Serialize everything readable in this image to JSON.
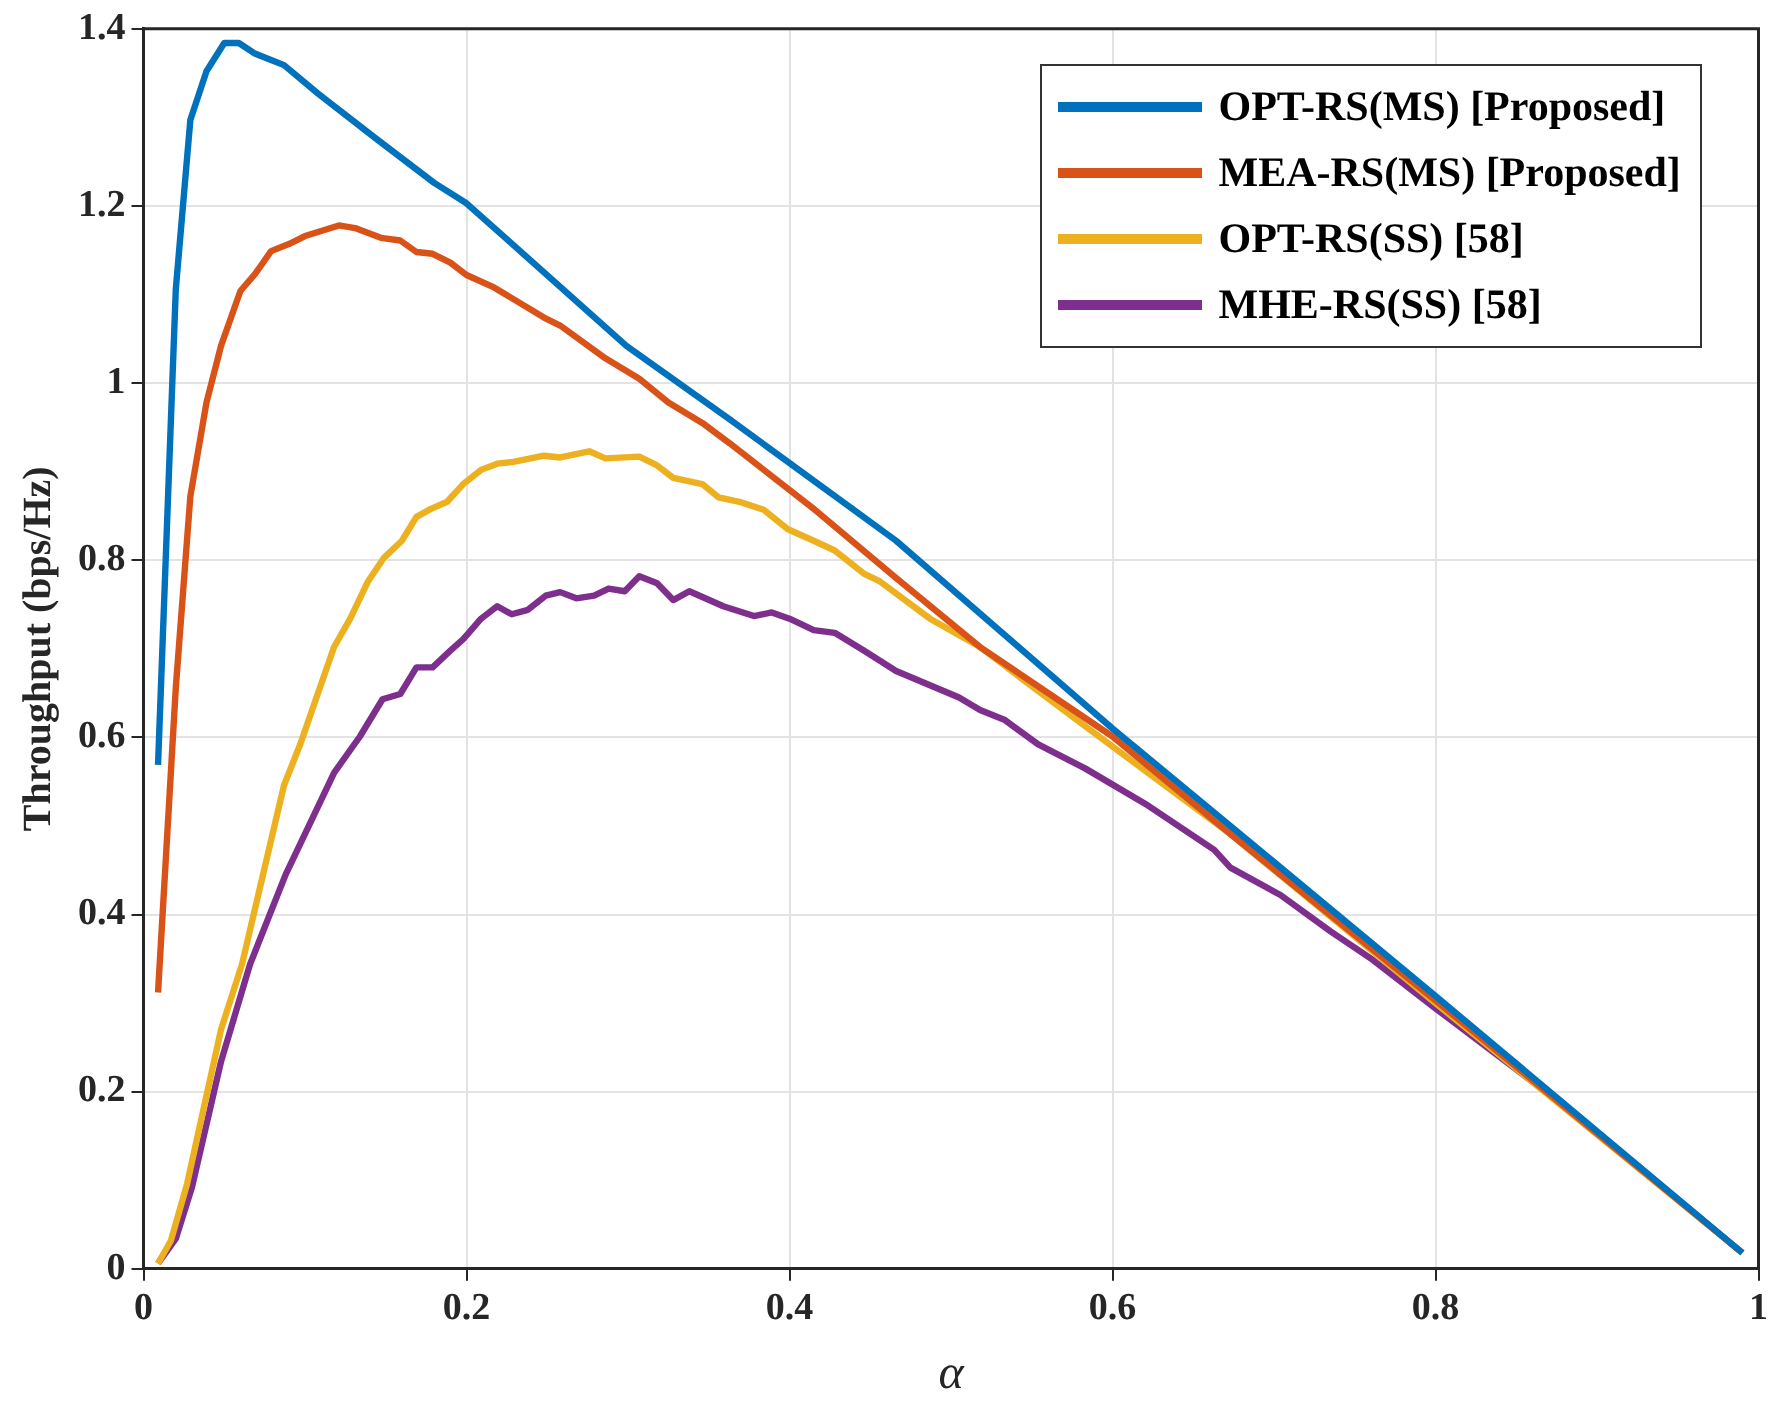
{
  "chart_data": {
    "type": "line",
    "xlabel": "α",
    "ylabel": "Throughput (bps/Hz)",
    "xlim": [
      0,
      1
    ],
    "xticks": [
      0,
      0.2,
      0.4,
      0.6,
      0.8,
      1
    ],
    "ylim": [
      0,
      1.4
    ],
    "yticks": [
      0,
      0.2,
      0.4,
      0.6,
      0.8,
      1,
      1.2,
      1.4
    ],
    "grid": true,
    "legend": "top right",
    "marker": "none",
    "line_style": "solid",
    "series": [
      {
        "name": "OPT-RS(MS) [Proposed]",
        "color": "#0072bd",
        "x": [
          0.009,
          0.02,
          0.029,
          0.039,
          0.05,
          0.059,
          0.069,
          0.087,
          0.108,
          0.144,
          0.18,
          0.2,
          0.248,
          0.299,
          0.363,
          0.466,
          0.6,
          0.673,
          0.8,
          0.99
        ],
        "values": [
          0.569,
          1.106,
          1.297,
          1.352,
          1.384,
          1.384,
          1.372,
          1.359,
          1.327,
          1.276,
          1.226,
          1.203,
          1.125,
          1.042,
          0.959,
          0.822,
          0.61,
          0.5,
          0.308,
          0.018
        ]
      },
      {
        "name": "MEA-RS(MS) [Proposed]",
        "color": "#d95319",
        "x": [
          0.009,
          0.02,
          0.029,
          0.039,
          0.048,
          0.06,
          0.069,
          0.079,
          0.09,
          0.1,
          0.121,
          0.131,
          0.147,
          0.159,
          0.169,
          0.179,
          0.19,
          0.2,
          0.217,
          0.248,
          0.258,
          0.286,
          0.307,
          0.325,
          0.346,
          0.363,
          0.415,
          0.466,
          0.518,
          0.6,
          0.673,
          0.8,
          0.99
        ],
        "values": [
          0.312,
          0.656,
          0.872,
          0.978,
          1.042,
          1.104,
          1.123,
          1.149,
          1.157,
          1.166,
          1.178,
          1.175,
          1.164,
          1.161,
          1.148,
          1.146,
          1.136,
          1.122,
          1.108,
          1.074,
          1.065,
          1.028,
          1.005,
          0.978,
          0.955,
          0.932,
          0.858,
          0.78,
          0.702,
          0.601,
          0.491,
          0.303,
          0.018
        ]
      },
      {
        "name": "OPT-RS(SS) [58]",
        "color": "#edb120",
        "x": [
          0.009,
          0.017,
          0.027,
          0.048,
          0.061,
          0.087,
          0.097,
          0.118,
          0.128,
          0.139,
          0.149,
          0.16,
          0.169,
          0.178,
          0.188,
          0.198,
          0.209,
          0.219,
          0.229,
          0.248,
          0.258,
          0.276,
          0.286,
          0.307,
          0.318,
          0.328,
          0.346,
          0.356,
          0.369,
          0.384,
          0.399,
          0.415,
          0.428,
          0.446,
          0.456,
          0.487,
          0.518,
          0.544,
          0.585,
          0.673,
          0.798,
          0.99
        ],
        "values": [
          0.006,
          0.032,
          0.096,
          0.27,
          0.344,
          0.546,
          0.592,
          0.702,
          0.734,
          0.776,
          0.803,
          0.822,
          0.849,
          0.858,
          0.866,
          0.886,
          0.902,
          0.909,
          0.911,
          0.918,
          0.916,
          0.923,
          0.915,
          0.917,
          0.907,
          0.893,
          0.886,
          0.871,
          0.866,
          0.857,
          0.835,
          0.822,
          0.811,
          0.785,
          0.776,
          0.734,
          0.702,
          0.666,
          0.61,
          0.491,
          0.303,
          0.018
        ]
      },
      {
        "name": "MHE-RS(SS) [58]",
        "color": "#7e2f8e",
        "x": [
          0.009,
          0.02,
          0.03,
          0.048,
          0.066,
          0.088,
          0.118,
          0.134,
          0.148,
          0.159,
          0.169,
          0.179,
          0.19,
          0.198,
          0.209,
          0.219,
          0.228,
          0.238,
          0.249,
          0.258,
          0.268,
          0.279,
          0.288,
          0.298,
          0.307,
          0.318,
          0.328,
          0.338,
          0.359,
          0.378,
          0.389,
          0.4,
          0.415,
          0.428,
          0.446,
          0.466,
          0.505,
          0.518,
          0.533,
          0.554,
          0.583,
          0.622,
          0.663,
          0.673,
          0.704,
          0.735,
          0.761,
          0.8,
          0.88,
          0.99
        ],
        "values": [
          0.006,
          0.034,
          0.092,
          0.234,
          0.344,
          0.445,
          0.56,
          0.601,
          0.643,
          0.649,
          0.679,
          0.679,
          0.698,
          0.711,
          0.734,
          0.748,
          0.739,
          0.744,
          0.76,
          0.764,
          0.757,
          0.76,
          0.768,
          0.765,
          0.782,
          0.774,
          0.755,
          0.765,
          0.748,
          0.737,
          0.741,
          0.734,
          0.721,
          0.718,
          0.698,
          0.675,
          0.645,
          0.631,
          0.62,
          0.592,
          0.565,
          0.523,
          0.473,
          0.453,
          0.422,
          0.381,
          0.349,
          0.294,
          0.184,
          0.018
        ]
      }
    ]
  }
}
